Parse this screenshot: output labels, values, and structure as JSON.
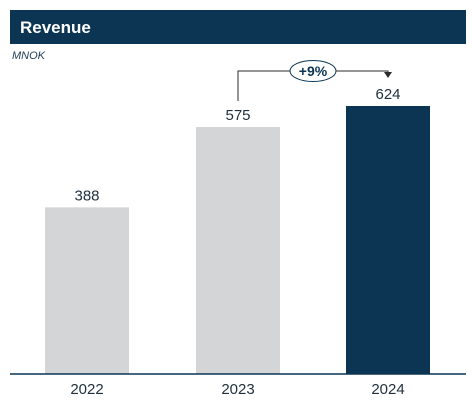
{
  "header": {
    "title": "Revenue",
    "unit": "MNOK"
  },
  "colors": {
    "title_bg": "#0b3553",
    "bar_past": "#d4d5d7",
    "bar_current": "#0b3553",
    "axis": "#0b3553",
    "text": "#1f2f3d"
  },
  "chart_data": {
    "type": "bar",
    "title": "Revenue",
    "ylabel": "MNOK",
    "categories": [
      "2022",
      "2023",
      "2024"
    ],
    "values": [
      388,
      575,
      624
    ],
    "value_labels": [
      "388",
      "575",
      "624"
    ],
    "highlight_index": 2,
    "ylim": [
      0,
      700
    ],
    "grid": false,
    "annotation": {
      "text": "+9%",
      "from": "2023",
      "to": "2024"
    }
  }
}
